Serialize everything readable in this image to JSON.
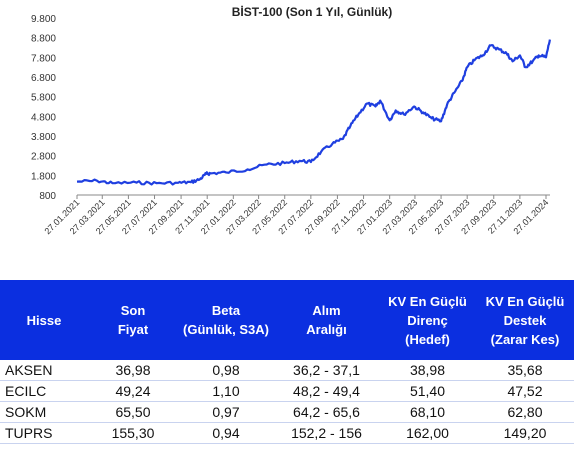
{
  "chart_data": {
    "type": "line",
    "title": "BİST-100 (Son 1 Yıl, Günlük)",
    "ylim": [
      800,
      9800
    ],
    "yticks": [
      "9.800",
      "8.800",
      "7.800",
      "6.800",
      "5.800",
      "4.800",
      "3.800",
      "2.800",
      "1.800",
      "800"
    ],
    "xticks": [
      "27.01.2021",
      "27.03.2021",
      "27.05.2021",
      "27.07.2021",
      "27.09.2021",
      "27.11.2021",
      "27.01.2022",
      "27.03.2022",
      "27.05.2022",
      "27.07.2022",
      "27.09.2022",
      "27.11.2022",
      "27.01.2023",
      "27.03.2023",
      "27.05.2023",
      "27.07.2023",
      "27.09.2023",
      "27.11.2023",
      "27.01.2024"
    ],
    "series_color": "#1f3fe0",
    "series": [
      {
        "x": [
          "2021-01-27",
          "2021-03-15",
          "2021-04-20",
          "2021-06-15",
          "2021-08-01",
          "2021-09-20",
          "2021-10-20",
          "2021-11-10",
          "2021-11-25",
          "2021-12-05",
          "2022-01-10",
          "2022-03-01",
          "2022-04-15",
          "2022-05-27",
          "2022-07-01",
          "2022-07-27",
          "2022-08-20",
          "2022-09-15",
          "2022-10-10",
          "2022-10-27",
          "2022-11-15",
          "2022-12-05",
          "2022-12-25",
          "2023-01-05",
          "2023-01-27",
          "2023-02-10",
          "2023-03-01",
          "2023-03-25",
          "2023-04-15",
          "2023-05-05",
          "2023-05-27",
          "2023-06-10",
          "2023-06-27",
          "2023-07-15",
          "2023-07-27",
          "2023-08-15",
          "2023-09-01",
          "2023-09-20",
          "2023-10-10",
          "2023-10-27",
          "2023-11-10",
          "2023-11-27",
          "2023-12-10",
          "2023-12-27",
          "2024-01-10",
          "2024-01-27",
          "2024-02-05"
        ],
        "y": [
          1480,
          1520,
          1400,
          1430,
          1400,
          1420,
          1450,
          1600,
          1880,
          1900,
          1950,
          2100,
          2350,
          2420,
          2540,
          2480,
          3000,
          3400,
          3650,
          4300,
          4900,
          5450,
          5300,
          5600,
          4600,
          5100,
          4900,
          5300,
          5000,
          4700,
          4550,
          5400,
          6000,
          6600,
          7300,
          7700,
          7900,
          8400,
          8200,
          8000,
          7600,
          7900,
          7300,
          7600,
          7900,
          7800,
          8700
        ]
      }
    ]
  },
  "table": {
    "headers": [
      [
        "Hisse"
      ],
      [
        "Son",
        "Fiyat"
      ],
      [
        "Beta",
        "(Günlük, S3A)"
      ],
      [
        "Alım",
        "Aralığı"
      ],
      [
        "KV En Güçlü",
        "Direnç",
        "(Hedef)"
      ],
      [
        "KV En Güçlü",
        "Destek",
        "(Zarar Kes)"
      ]
    ],
    "rows": [
      [
        "AKSEN",
        "36,98",
        "0,98",
        "36,2 - 37,1",
        "38,98",
        "35,68"
      ],
      [
        "ECILC",
        "49,24",
        "1,10",
        "48,2 - 49,4",
        "51,40",
        "47,52"
      ],
      [
        "SOKM",
        "65,50",
        "0,97",
        "64,2 - 65,6",
        "68,10",
        "62,80"
      ],
      [
        "TUPRS",
        "155,30",
        "0,94",
        "152,2 - 156",
        "162,00",
        "149,20"
      ]
    ],
    "header_color": "#0b2fe0"
  }
}
